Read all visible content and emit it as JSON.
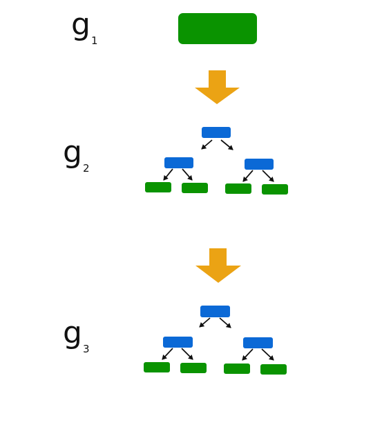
{
  "labels": [
    {
      "base": "g",
      "sub": "1"
    },
    {
      "base": "g",
      "sub": "2"
    },
    {
      "base": "g",
      "sub": "3"
    }
  ],
  "colors": {
    "leaf": "#0a9300",
    "inner": "#0b69d6",
    "transition_arrow": "#eba314",
    "edge": "#111111",
    "text": "#111111"
  },
  "stages": [
    {
      "name": "g1",
      "structure": "single-node"
    },
    {
      "name": "g2",
      "structure": "binary-tree-depth-2"
    },
    {
      "name": "g3",
      "structure": "binary-tree-depth-2"
    }
  ]
}
